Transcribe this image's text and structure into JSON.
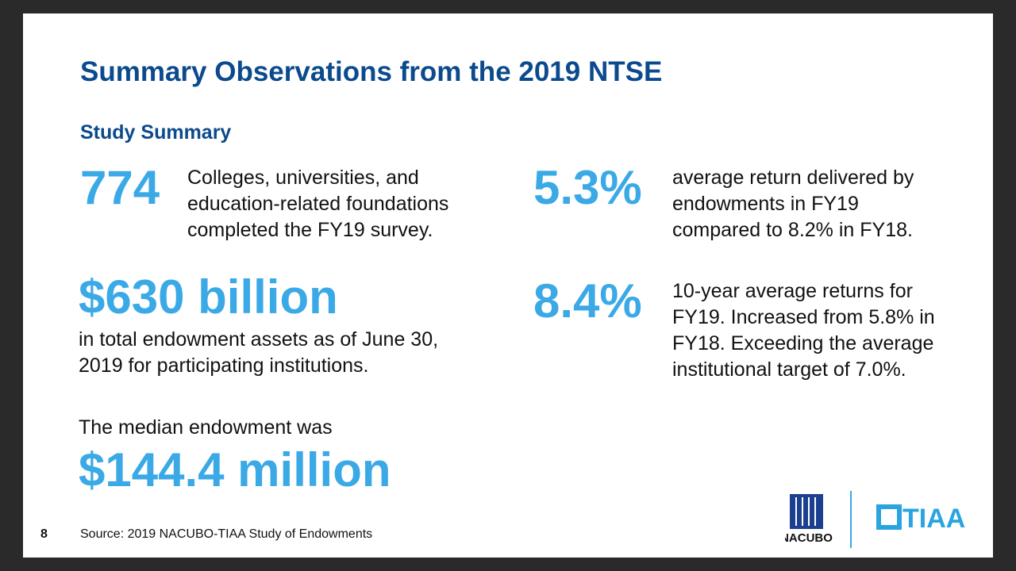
{
  "title": "Summary Observations from the 2019 NTSE",
  "subtitle": "Study Summary",
  "stats": [
    {
      "value": "774",
      "text": "Colleges, universities, and education-related foundations completed the FY19 survey."
    },
    {
      "value": "$630 billion",
      "text": "in total endowment assets as of June 30, 2019 for participating institutions."
    },
    {
      "value": "$144.4 million",
      "text": "The median endowment was"
    },
    {
      "value": "5.3%",
      "text": "average return delivered by endowments in FY19 compared to 8.2% in FY18."
    },
    {
      "value": "8.4%",
      "text": "10-year average returns for FY19. Increased from 5.8% in FY18. Exceeding the average institutional target of 7.0%."
    }
  ],
  "footer": {
    "page": "8",
    "source": "Source: 2019 NACUBO-TIAA Study of Endowments",
    "logo1": "NACUBO",
    "logo2": "TIAA"
  }
}
